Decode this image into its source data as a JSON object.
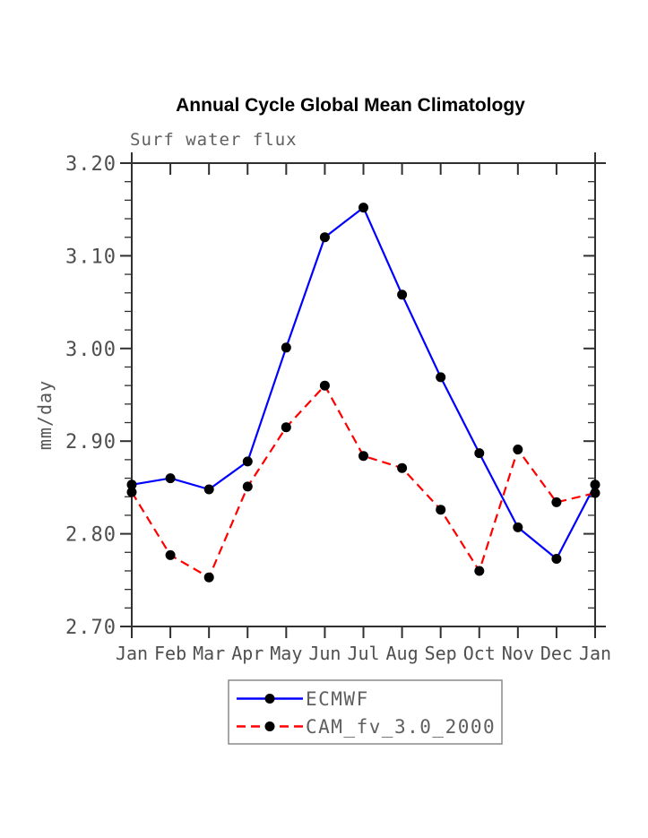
{
  "page": {
    "background": "#ffffff"
  },
  "chart": {
    "title": "Annual Cycle Global Mean Climatology",
    "subtitle": "Surf water flux",
    "ylabel": "mm/day"
  },
  "legend": {
    "position": "bottom-center",
    "entries": [
      {
        "label": "ECMWF",
        "color": "#0000ff",
        "style": "solid",
        "marker": "black-dot"
      },
      {
        "label": "CAM_fv_3.0_2000",
        "color": "#ff0000",
        "style": "dashed",
        "marker": "black-dot"
      }
    ]
  },
  "chart_data": {
    "type": "line",
    "title": "Annual Cycle Global Mean Climatology",
    "subtitle": "Surf water flux",
    "xlabel": "",
    "ylabel": "mm/day",
    "categories": [
      "Jan",
      "Feb",
      "Mar",
      "Apr",
      "May",
      "Jun",
      "Jul",
      "Aug",
      "Sep",
      "Oct",
      "Nov",
      "Dec",
      "Jan"
    ],
    "series": [
      {
        "name": "ECMWF",
        "color": "#0000ff",
        "line_style": "solid",
        "marker": "circle",
        "marker_color": "#000000",
        "values": [
          2.853,
          2.86,
          2.848,
          2.878,
          3.001,
          3.12,
          3.152,
          3.058,
          2.969,
          2.887,
          2.807,
          2.773,
          2.853
        ]
      },
      {
        "name": "CAM_fv_3.0_2000",
        "color": "#ff0000",
        "line_style": "dashed",
        "marker": "circle",
        "marker_color": "#000000",
        "values": [
          2.845,
          2.777,
          2.753,
          2.851,
          2.915,
          2.96,
          2.884,
          2.871,
          2.826,
          2.76,
          2.891,
          2.834,
          2.844
        ]
      }
    ],
    "ylim": [
      2.7,
      3.2
    ],
    "y_major_ticks": [
      "3.20",
      "3.10",
      "3.00",
      "2.90",
      "2.80",
      "2.70"
    ],
    "y_major_step": 0.1,
    "y_minor_step": 0.02,
    "grid": false,
    "legend_position": "bottom-center",
    "axis_color": "#303030",
    "label_color": "#4f4f4f"
  }
}
